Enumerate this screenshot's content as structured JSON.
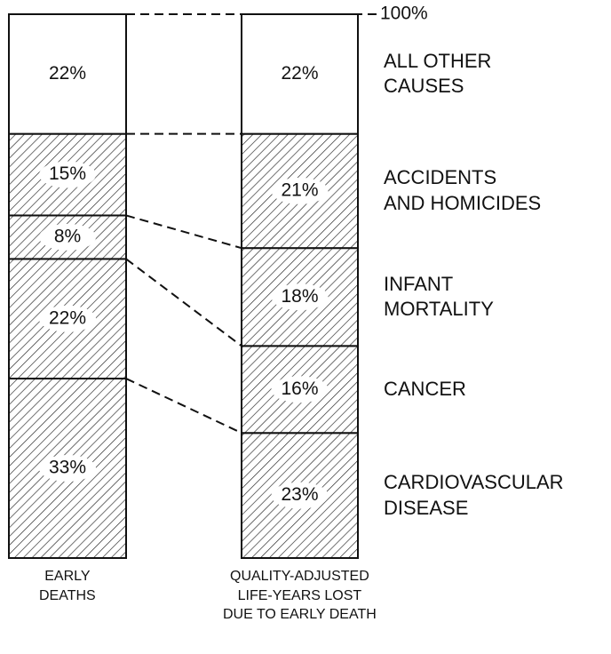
{
  "chart_data": {
    "type": "stacked-bar",
    "categories": [
      "EARLY\nDEATHS",
      "QUALITY-ADJUSTED\nLIFE-YEARS LOST\nDUE TO EARLY DEATH"
    ],
    "series": [
      {
        "name": "CARDIOVASCULAR\nDISEASE",
        "color": "#ffffff",
        "hatched": true,
        "values": [
          33,
          23
        ],
        "value_labels": [
          "33%",
          "23%"
        ]
      },
      {
        "name": "CANCER",
        "color": "#ffffff",
        "hatched": true,
        "values": [
          22,
          16
        ],
        "value_labels": [
          "22%",
          "16%"
        ]
      },
      {
        "name": "INFANT\nMORTALITY",
        "color": "#ffffff",
        "hatched": true,
        "values": [
          8,
          18
        ],
        "value_labels": [
          "8%",
          "18%"
        ]
      },
      {
        "name": "ACCIDENTS\nAND HOMICIDES",
        "color": "#ffffff",
        "hatched": true,
        "values": [
          15,
          21
        ],
        "value_labels": [
          "15%",
          "21%"
        ]
      },
      {
        "name": "ALL OTHER\nCAUSES",
        "color": "#ffffff",
        "hatched": false,
        "values": [
          22,
          22
        ],
        "value_labels": [
          "22%",
          "22%"
        ]
      }
    ],
    "ylim": [
      0,
      100
    ],
    "yticks": [
      {
        "value": 100,
        "label": "100%"
      }
    ]
  }
}
